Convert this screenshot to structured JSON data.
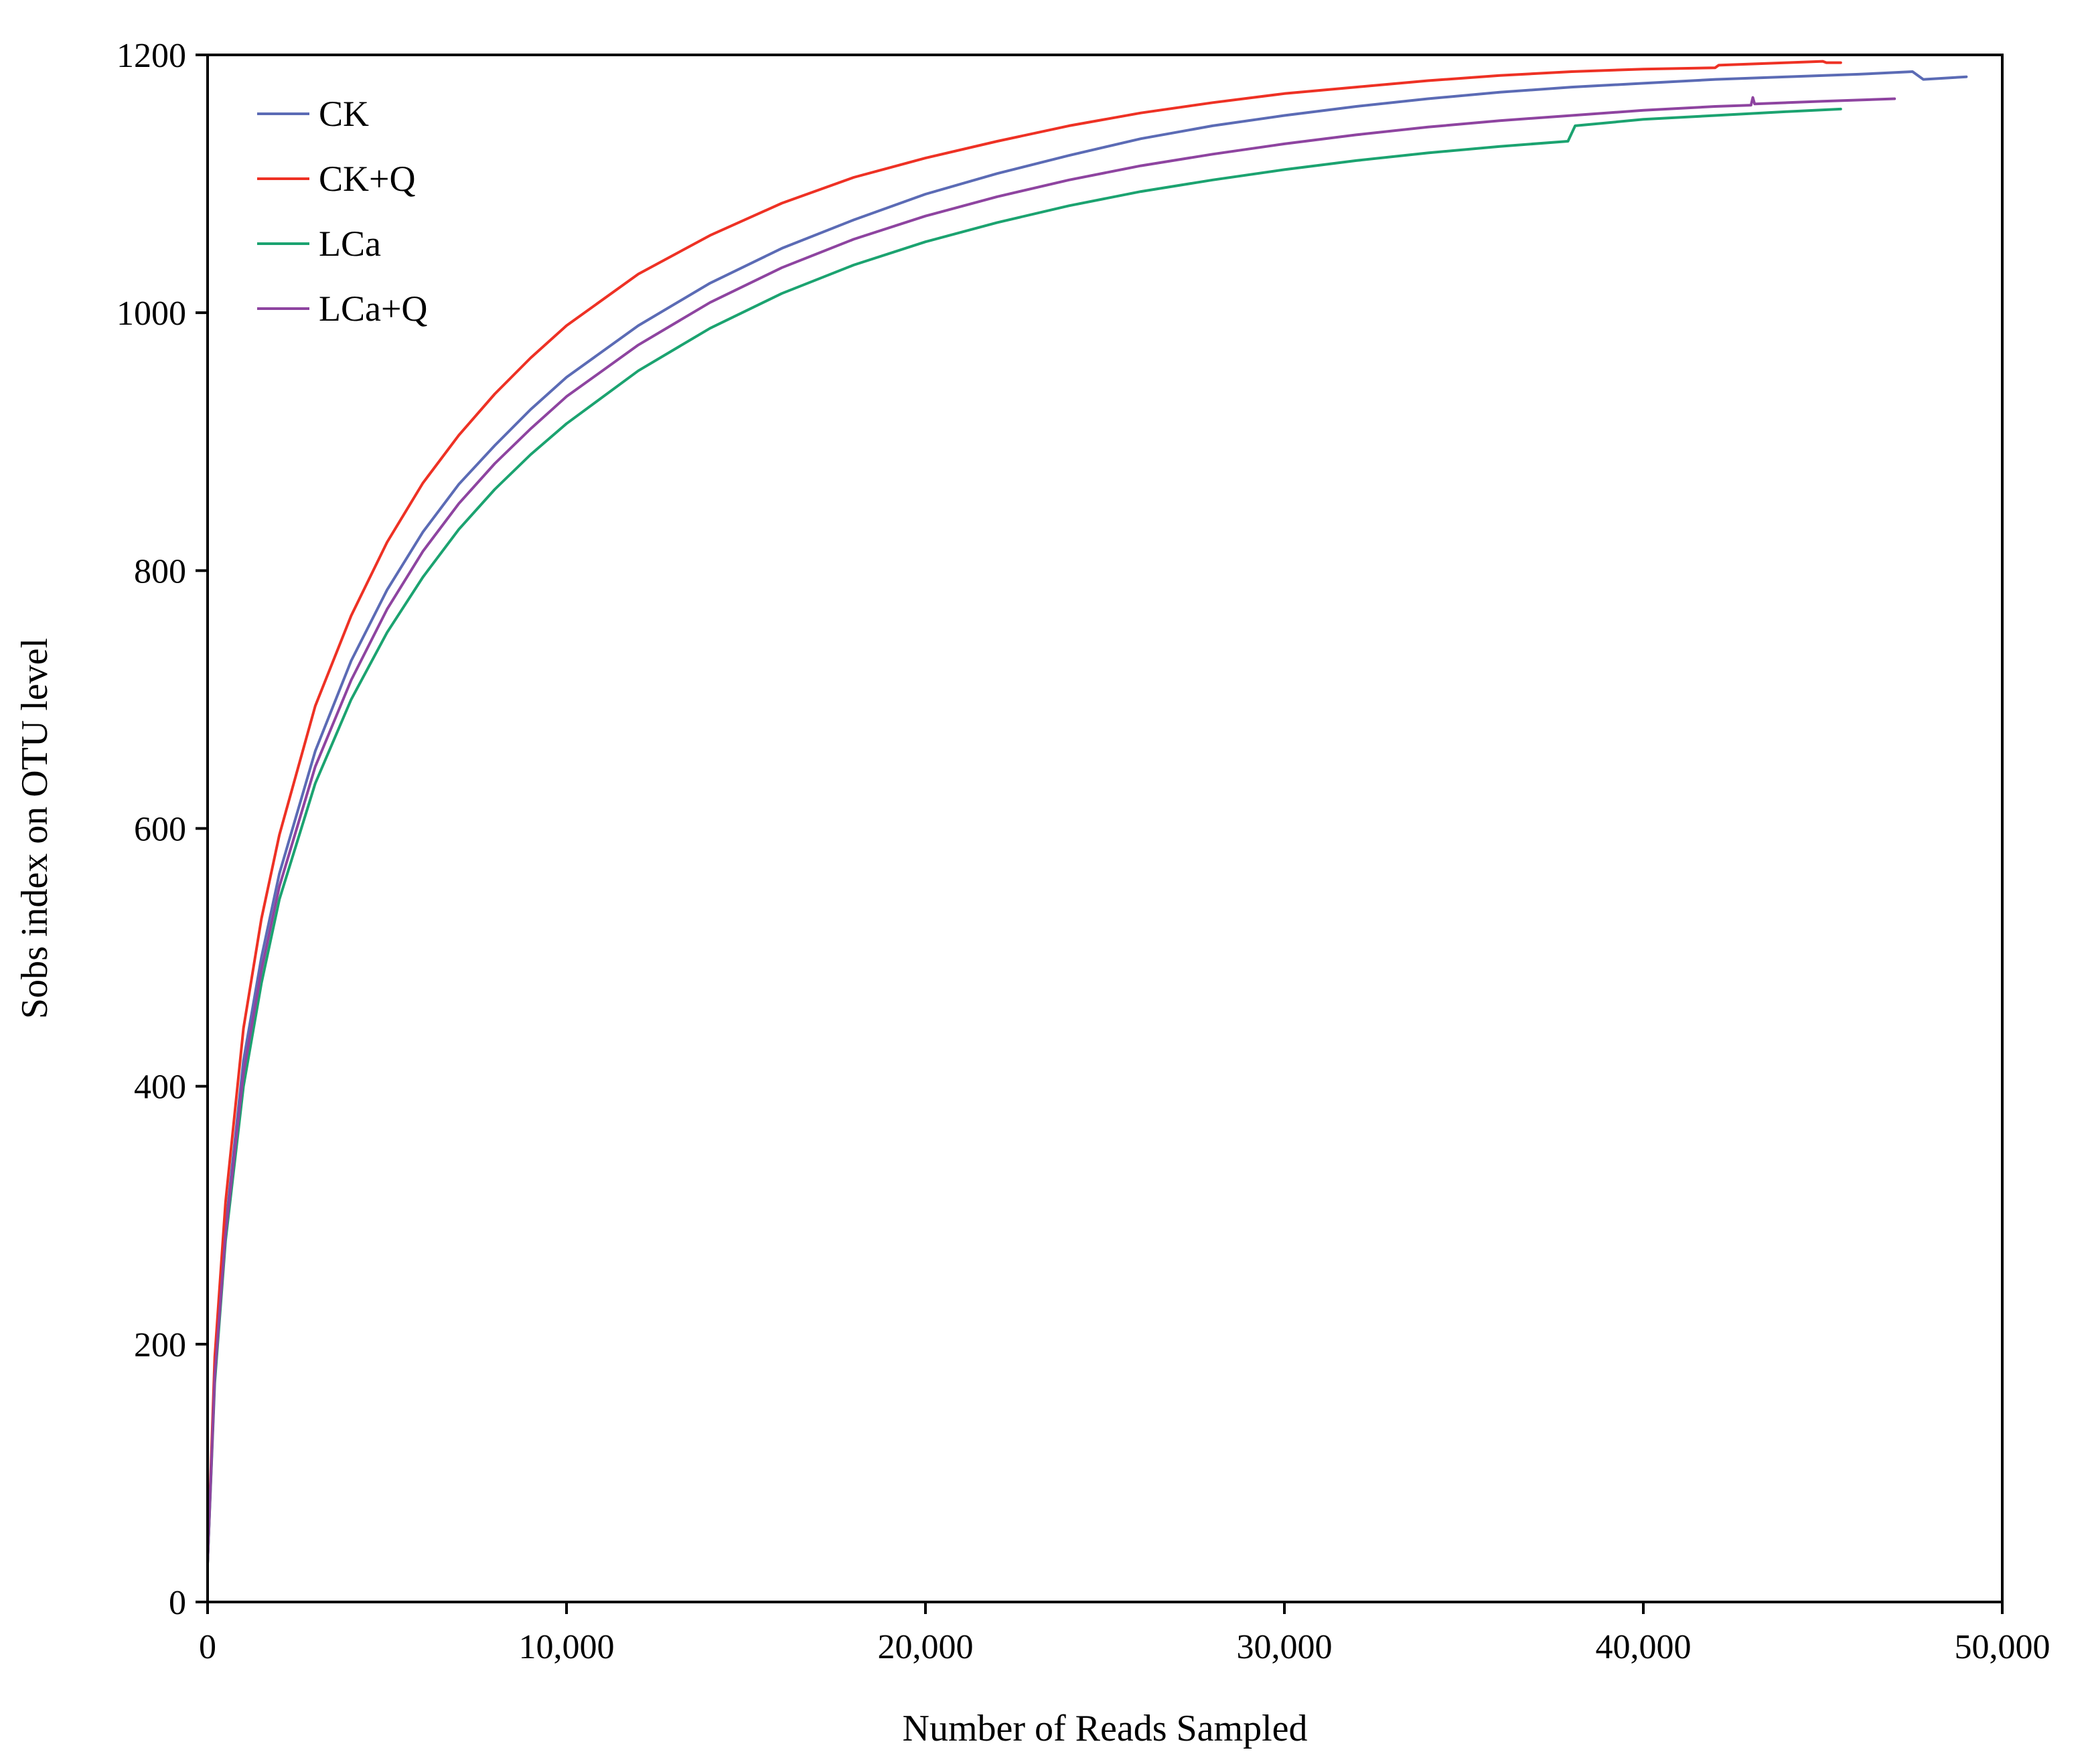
{
  "chart_data": {
    "type": "line",
    "title": "",
    "xlabel": "Number of Reads Sampled",
    "ylabel": "Sobs index on OTU level",
    "xlim": [
      0,
      50000
    ],
    "ylim": [
      0,
      1200
    ],
    "x_ticks": [
      0,
      10000,
      20000,
      30000,
      40000,
      50000
    ],
    "x_tick_labels": [
      "0",
      "10,000",
      "20,000",
      "30,000",
      "40,000",
      "50,000"
    ],
    "y_ticks": [
      0,
      200,
      400,
      600,
      800,
      1000,
      1200
    ],
    "y_tick_labels": [
      "0",
      "200",
      "400",
      "600",
      "800",
      "1000",
      "1200"
    ],
    "grid": false,
    "legend_position": "top-left",
    "series": [
      {
        "name": "CK",
        "color": "#5b6bb5",
        "points": [
          [
            0,
            30
          ],
          [
            200,
            180
          ],
          [
            500,
            290
          ],
          [
            1000,
            420
          ],
          [
            1500,
            500
          ],
          [
            2000,
            565
          ],
          [
            3000,
            660
          ],
          [
            4000,
            730
          ],
          [
            5000,
            785
          ],
          [
            6000,
            830
          ],
          [
            7000,
            867
          ],
          [
            8000,
            897
          ],
          [
            9000,
            925
          ],
          [
            10000,
            950
          ],
          [
            12000,
            990
          ],
          [
            14000,
            1023
          ],
          [
            16000,
            1050
          ],
          [
            18000,
            1072
          ],
          [
            20000,
            1092
          ],
          [
            22000,
            1108
          ],
          [
            24000,
            1122
          ],
          [
            26000,
            1135
          ],
          [
            28000,
            1145
          ],
          [
            30000,
            1153
          ],
          [
            32000,
            1160
          ],
          [
            34000,
            1166
          ],
          [
            36000,
            1171
          ],
          [
            38000,
            1175
          ],
          [
            40000,
            1178
          ],
          [
            42000,
            1181
          ],
          [
            44000,
            1183
          ],
          [
            46000,
            1185
          ],
          [
            47500,
            1187
          ],
          [
            47800,
            1181
          ],
          [
            49000,
            1183
          ]
        ]
      },
      {
        "name": "CK+Q",
        "color": "#ee3124",
        "points": [
          [
            0,
            30
          ],
          [
            200,
            190
          ],
          [
            500,
            310
          ],
          [
            1000,
            445
          ],
          [
            1500,
            530
          ],
          [
            2000,
            595
          ],
          [
            3000,
            695
          ],
          [
            4000,
            765
          ],
          [
            5000,
            822
          ],
          [
            6000,
            868
          ],
          [
            7000,
            905
          ],
          [
            8000,
            937
          ],
          [
            9000,
            965
          ],
          [
            10000,
            990
          ],
          [
            12000,
            1030
          ],
          [
            14000,
            1060
          ],
          [
            16000,
            1085
          ],
          [
            18000,
            1105
          ],
          [
            20000,
            1120
          ],
          [
            22000,
            1133
          ],
          [
            24000,
            1145
          ],
          [
            26000,
            1155
          ],
          [
            28000,
            1163
          ],
          [
            30000,
            1170
          ],
          [
            32000,
            1175
          ],
          [
            34000,
            1180
          ],
          [
            36000,
            1184
          ],
          [
            38000,
            1187
          ],
          [
            40000,
            1189
          ],
          [
            42000,
            1190
          ],
          [
            42100,
            1192
          ],
          [
            44000,
            1194
          ],
          [
            45000,
            1195
          ],
          [
            45100,
            1194
          ],
          [
            45500,
            1194
          ]
        ]
      },
      {
        "name": "LCa",
        "color": "#1ba370",
        "points": [
          [
            0,
            30
          ],
          [
            200,
            170
          ],
          [
            500,
            280
          ],
          [
            1000,
            400
          ],
          [
            1500,
            480
          ],
          [
            2000,
            545
          ],
          [
            3000,
            635
          ],
          [
            4000,
            700
          ],
          [
            5000,
            752
          ],
          [
            6000,
            795
          ],
          [
            7000,
            832
          ],
          [
            8000,
            863
          ],
          [
            9000,
            890
          ],
          [
            10000,
            914
          ],
          [
            12000,
            955
          ],
          [
            14000,
            988
          ],
          [
            16000,
            1015
          ],
          [
            18000,
            1037
          ],
          [
            20000,
            1055
          ],
          [
            22000,
            1070
          ],
          [
            24000,
            1083
          ],
          [
            26000,
            1094
          ],
          [
            28000,
            1103
          ],
          [
            30000,
            1111
          ],
          [
            32000,
            1118
          ],
          [
            34000,
            1124
          ],
          [
            36000,
            1129
          ],
          [
            37900,
            1133
          ],
          [
            38100,
            1145
          ],
          [
            40000,
            1150
          ],
          [
            42000,
            1153
          ],
          [
            44000,
            1156
          ],
          [
            45500,
            1158
          ]
        ]
      },
      {
        "name": "LCa+Q",
        "color": "#8e44a0",
        "points": [
          [
            0,
            30
          ],
          [
            200,
            175
          ],
          [
            500,
            285
          ],
          [
            1000,
            410
          ],
          [
            1500,
            490
          ],
          [
            2000,
            555
          ],
          [
            3000,
            648
          ],
          [
            4000,
            715
          ],
          [
            5000,
            770
          ],
          [
            6000,
            815
          ],
          [
            7000,
            852
          ],
          [
            8000,
            883
          ],
          [
            9000,
            910
          ],
          [
            10000,
            935
          ],
          [
            12000,
            975
          ],
          [
            14000,
            1008
          ],
          [
            16000,
            1035
          ],
          [
            18000,
            1057
          ],
          [
            20000,
            1075
          ],
          [
            22000,
            1090
          ],
          [
            24000,
            1103
          ],
          [
            26000,
            1114
          ],
          [
            28000,
            1123
          ],
          [
            30000,
            1131
          ],
          [
            32000,
            1138
          ],
          [
            34000,
            1144
          ],
          [
            36000,
            1149
          ],
          [
            38000,
            1153
          ],
          [
            40000,
            1157
          ],
          [
            42000,
            1160
          ],
          [
            43000,
            1161
          ],
          [
            43050,
            1167
          ],
          [
            43100,
            1162
          ],
          [
            45000,
            1164
          ],
          [
            47000,
            1166
          ]
        ]
      }
    ]
  }
}
